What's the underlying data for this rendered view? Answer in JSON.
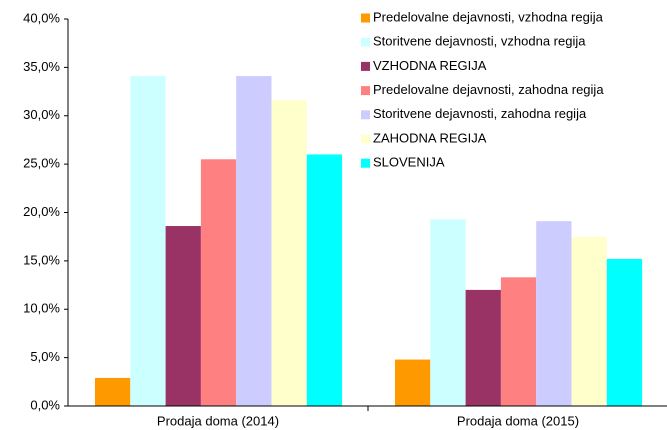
{
  "chart_data": {
    "type": "bar",
    "categories": [
      "Prodaja doma (2014)",
      "Prodaja doma (2015)"
    ],
    "series": [
      {
        "name": "Predelovalne dejavnosti, vzhodna regija",
        "color": "#ff9900",
        "values": [
          2.9,
          4.8
        ]
      },
      {
        "name": "Storitvene dejavnosti, vzhodna regija",
        "color": "#ccffff",
        "values": [
          34.1,
          19.3
        ]
      },
      {
        "name": "VZHODNA REGIJA",
        "color": "#993366",
        "values": [
          18.6,
          12.0
        ]
      },
      {
        "name": "Predelovalne dejavnosti, zahodna regija",
        "color": "#ff8080",
        "values": [
          25.5,
          13.3
        ]
      },
      {
        "name": "Storitvene dejavnosti, zahodna regija",
        "color": "#ccccff",
        "values": [
          34.1,
          19.1
        ]
      },
      {
        "name": "ZAHODNA REGIJA",
        "color": "#ffffcc",
        "values": [
          31.6,
          17.5
        ]
      },
      {
        "name": "SLOVENIJA",
        "color": "#00ffff",
        "values": [
          26.0,
          15.2
        ]
      }
    ],
    "ylim": [
      0,
      40
    ],
    "yticks": [
      {
        "value": 0,
        "label": "0,0%"
      },
      {
        "value": 5,
        "label": "5,0%"
      },
      {
        "value": 10,
        "label": "10,0%"
      },
      {
        "value": 15,
        "label": "15,0%"
      },
      {
        "value": 20,
        "label": "20,0%"
      },
      {
        "value": 25,
        "label": "25,0%"
      },
      {
        "value": 30,
        "label": "30,0%"
      },
      {
        "value": 35,
        "label": "35,0%"
      },
      {
        "value": 40,
        "label": "40,0%"
      }
    ],
    "grid": false,
    "legend": "top-right"
  }
}
